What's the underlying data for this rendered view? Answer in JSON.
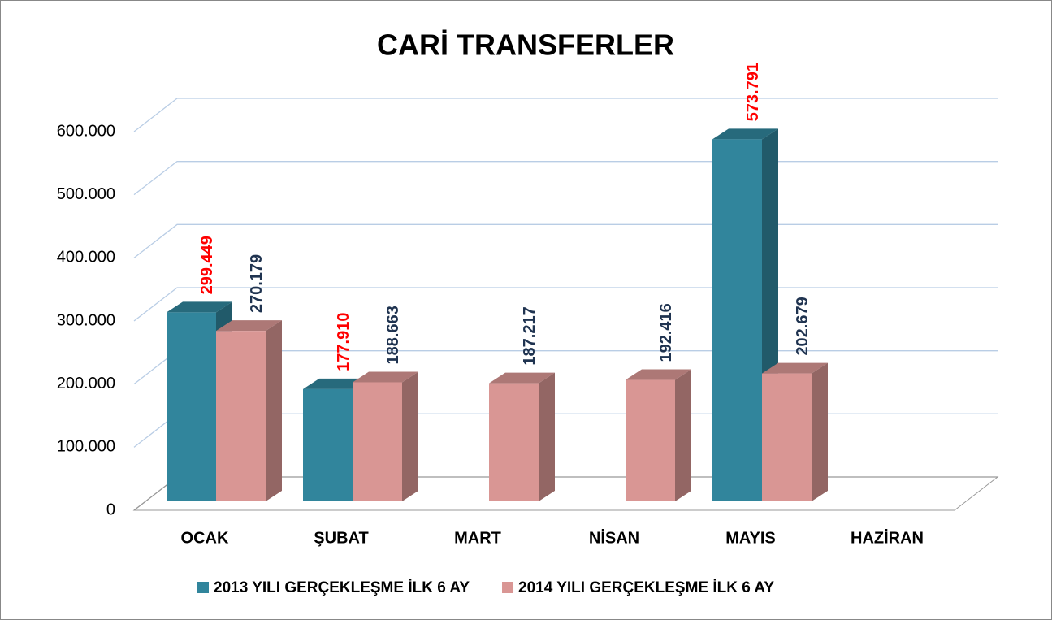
{
  "chart_data": {
    "type": "bar3d",
    "title": "CARİ TRANSFERLER",
    "categories": [
      "OCAK",
      "ŞUBAT",
      "MART",
      "NİSAN",
      "MAYIS",
      "HAZİRAN"
    ],
    "series": [
      {
        "name": "2013 YILI GERÇEKLEŞME İLK 6 AY",
        "color": "#31859c",
        "label_color": "#ff0000",
        "values": [
          299449,
          177910,
          null,
          null,
          573791,
          null
        ],
        "value_labels": [
          "299.449",
          "177.910",
          null,
          null,
          "573.791",
          null
        ]
      },
      {
        "name": "2014 YILI GERÇEKLEŞME İLK 6 AY",
        "color": "#d99694",
        "label_color": "#1f3350",
        "values": [
          270179,
          188663,
          187217,
          192416,
          202679,
          null
        ],
        "value_labels": [
          "270.179",
          "188.663",
          "187.217",
          "192.416",
          "202.679",
          null
        ]
      }
    ],
    "ylim": [
      0,
      600000
    ],
    "yticks": [
      0,
      {
        "value": 100000,
        "label": "100.000"
      },
      {
        "value": 200000,
        "label": "200.000"
      },
      {
        "value": 300000,
        "label": "300.000"
      },
      {
        "value": 400000,
        "label": "400.000"
      },
      {
        "value": 500000,
        "label": "500.000"
      },
      {
        "value": 600000,
        "label": "600.000"
      }
    ],
    "grid": true,
    "legend": "bottom"
  }
}
